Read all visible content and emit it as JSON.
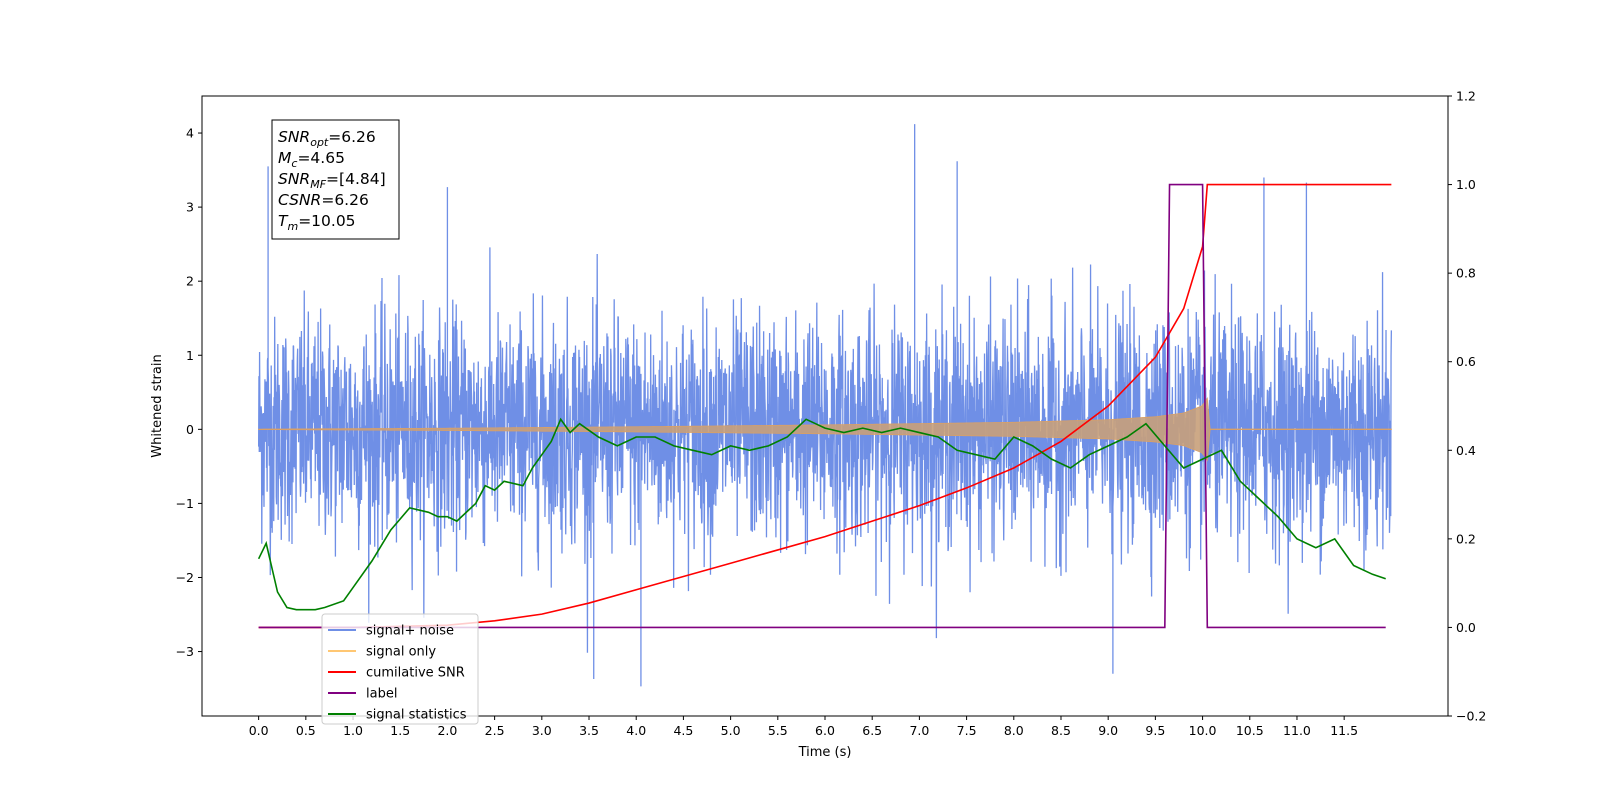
{
  "chart_data": {
    "type": "line",
    "xlabel": "Time (s)",
    "ylabel": "Whitened strain",
    "xlim": [
      -0.6,
      12.6
    ],
    "ylim": [
      -3.87,
      4.5
    ],
    "y2lim": [
      -0.2,
      1.2
    ],
    "grid": false,
    "x_ticks": [
      "0.0",
      "0.5",
      "1.0",
      "1.5",
      "2.0",
      "2.5",
      "3.0",
      "3.5",
      "4.0",
      "4.5",
      "5.0",
      "5.5",
      "6.0",
      "6.5",
      "7.0",
      "7.5",
      "8.0",
      "8.5",
      "9.0",
      "9.5",
      "10.0",
      "10.5",
      "11.0",
      "11.5"
    ],
    "y_ticks": [
      "4",
      "3",
      "2",
      "1",
      "0",
      "−1",
      "−2",
      "−3"
    ],
    "y2_ticks": [
      "1.2",
      "1.0",
      "0.8",
      "0.6",
      "0.4",
      "0.2",
      "0.0",
      "−0.2"
    ],
    "stats_box": {
      "lines": [
        {
          "main": "SNR",
          "sub": "opt",
          "value": "=6.26"
        },
        {
          "main": "M",
          "sub": "c",
          "value": "=4.65"
        },
        {
          "main": "SNR",
          "sub": "MF",
          "value": "=[4.84]"
        },
        {
          "main": "CSNR",
          "sub": "",
          "value": "=6.26"
        },
        {
          "main": "T",
          "sub": "m",
          "value": "=10.05"
        }
      ]
    },
    "legend": {
      "location": "lower left",
      "entries": [
        {
          "label": "signal+ noise",
          "color": "#6F8FE6"
        },
        {
          "label": "signal only",
          "color": "#FFC773"
        },
        {
          "label": "cumilative SNR",
          "color": "#ff0000"
        },
        {
          "label": "label",
          "color": "#800080"
        },
        {
          "label": "signal statistics",
          "color": "#008000"
        }
      ]
    },
    "series": [
      {
        "name": "signal+ noise",
        "axis": "left",
        "color": "#6F8FE6",
        "x_range": [
          0.0,
          12.0
        ],
        "noise_sigma": 0.75,
        "notable_peaks": [
          [
            0.1,
            3.55
          ],
          [
            2.0,
            3.27
          ],
          [
            6.95,
            4.12
          ],
          [
            7.4,
            3.62
          ],
          [
            10.65,
            3.4
          ],
          [
            11.1,
            3.33
          ],
          [
            4.05,
            -3.47
          ],
          [
            9.05,
            -3.3
          ],
          [
            3.55,
            -3.37
          ]
        ]
      },
      {
        "name": "signal only",
        "axis": "left",
        "color": "#FFC773",
        "x_range": [
          0.0,
          12.0
        ],
        "envelope": {
          "t": [
            0,
            2,
            4,
            6,
            8,
            9,
            9.5,
            9.8,
            10.0,
            10.05
          ],
          "amp": [
            0.003,
            0.015,
            0.035,
            0.06,
            0.095,
            0.13,
            0.17,
            0.22,
            0.32,
            0.42
          ]
        },
        "merger_time": 10.05
      },
      {
        "name": "cumilative SNR",
        "axis": "right",
        "color": "#ff0000",
        "x": [
          0.0,
          1.0,
          2.0,
          2.5,
          3.0,
          3.5,
          4.0,
          4.5,
          5.0,
          5.5,
          6.0,
          6.5,
          7.0,
          7.5,
          8.0,
          8.5,
          9.0,
          9.5,
          9.8,
          10.0,
          10.05,
          12.0
        ],
        "y": [
          0.0,
          0.0,
          0.005,
          0.015,
          0.03,
          0.055,
          0.085,
          0.115,
          0.145,
          0.175,
          0.205,
          0.24,
          0.275,
          0.315,
          0.36,
          0.42,
          0.5,
          0.61,
          0.72,
          0.86,
          1.0,
          1.0
        ]
      },
      {
        "name": "label",
        "axis": "right",
        "color": "#800080",
        "x": [
          0.0,
          9.6,
          9.65,
          10.0,
          10.05,
          11.94
        ],
        "y": [
          0.0,
          0.0,
          1.0,
          1.0,
          0.0,
          0.0
        ]
      },
      {
        "name": "signal statistics",
        "axis": "right",
        "color": "#008000",
        "x": [
          0.0,
          0.08,
          0.2,
          0.3,
          0.4,
          0.5,
          0.6,
          0.7,
          0.9,
          1.0,
          1.2,
          1.4,
          1.6,
          1.8,
          1.9,
          2.0,
          2.1,
          2.3,
          2.4,
          2.5,
          2.6,
          2.8,
          2.9,
          3.0,
          3.1,
          3.2,
          3.3,
          3.4,
          3.6,
          3.8,
          4.0,
          4.2,
          4.4,
          4.6,
          4.8,
          5.0,
          5.2,
          5.4,
          5.6,
          5.8,
          5.9,
          6.0,
          6.2,
          6.4,
          6.6,
          6.8,
          7.0,
          7.2,
          7.4,
          7.6,
          7.8,
          8.0,
          8.2,
          8.4,
          8.6,
          8.8,
          9.0,
          9.2,
          9.4,
          9.6,
          9.8,
          10.0,
          10.2,
          10.4,
          10.6,
          10.8,
          11.0,
          11.2,
          11.4,
          11.6,
          11.8,
          11.94
        ],
        "y": [
          0.155,
          0.19,
          0.08,
          0.045,
          0.04,
          0.04,
          0.04,
          0.045,
          0.06,
          0.09,
          0.15,
          0.22,
          0.27,
          0.26,
          0.25,
          0.25,
          0.24,
          0.28,
          0.32,
          0.31,
          0.33,
          0.32,
          0.36,
          0.39,
          0.42,
          0.47,
          0.44,
          0.46,
          0.43,
          0.41,
          0.43,
          0.43,
          0.41,
          0.4,
          0.39,
          0.41,
          0.4,
          0.41,
          0.43,
          0.47,
          0.46,
          0.45,
          0.44,
          0.45,
          0.44,
          0.45,
          0.44,
          0.43,
          0.4,
          0.39,
          0.38,
          0.43,
          0.41,
          0.38,
          0.36,
          0.39,
          0.41,
          0.43,
          0.46,
          0.41,
          0.36,
          0.38,
          0.4,
          0.33,
          0.29,
          0.25,
          0.2,
          0.18,
          0.2,
          0.14,
          0.12,
          0.11
        ]
      }
    ]
  }
}
